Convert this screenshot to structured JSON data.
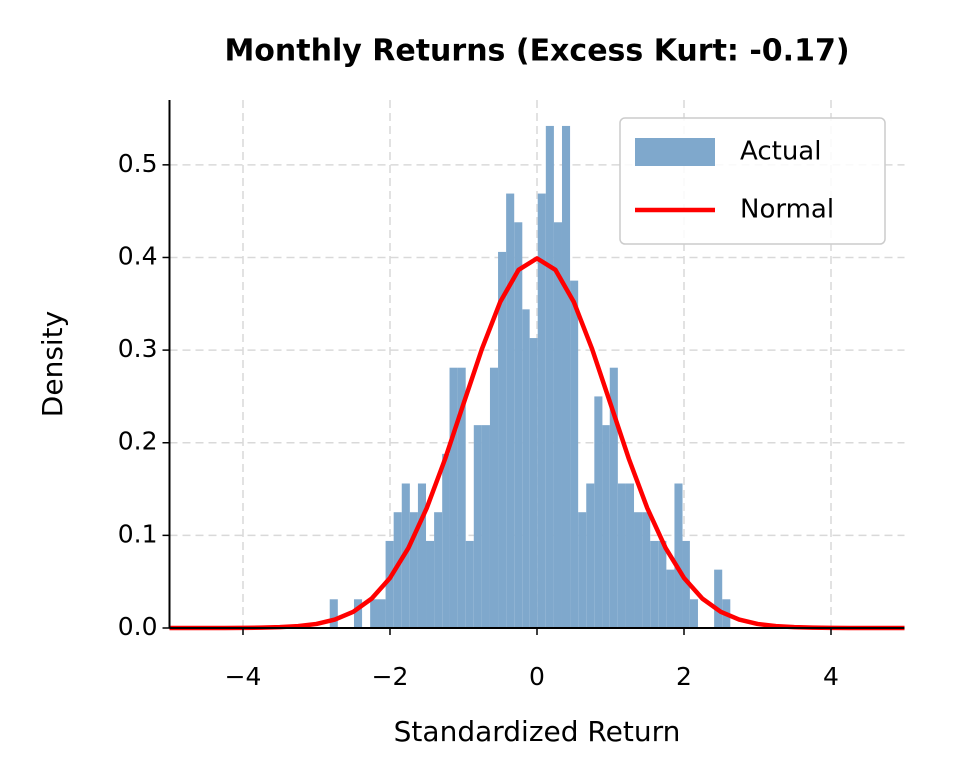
{
  "chart_data": {
    "type": "histogram",
    "title": "Monthly Returns (Excess Kurt: -0.17)",
    "x_label": "Standardized Return",
    "y_label": "Density",
    "bins": [
      -2.82,
      -2.71,
      -2.6,
      -2.49,
      -2.38,
      -2.27,
      -2.17,
      -2.06,
      -1.95,
      -1.84,
      -1.73,
      -1.62,
      -1.51,
      -1.4,
      -1.29,
      -1.19,
      -1.08,
      -0.97,
      -0.86,
      -0.75,
      -0.64,
      -0.53,
      -0.42,
      -0.31,
      -0.2,
      -0.1,
      0.01,
      0.12,
      0.23,
      0.34,
      0.45,
      0.56,
      0.67,
      0.78,
      0.89,
      0.99,
      1.1,
      1.21,
      1.32,
      1.43,
      1.54,
      1.65,
      1.76,
      1.87,
      1.98,
      2.08,
      2.19,
      2.3,
      2.41,
      2.52,
      2.63
    ],
    "series": [
      {
        "name": "Actual",
        "type": "histogram",
        "color": "#7fa8cc",
        "values": [
          0.031,
          0,
          0,
          0.031,
          0,
          0.031,
          0.031,
          0.094,
          0.125,
          0.156,
          0.125,
          0.156,
          0.094,
          0.125,
          0.188,
          0.281,
          0.281,
          0.094,
          0.219,
          0.219,
          0.281,
          0.406,
          0.469,
          0.438,
          0.344,
          0.313,
          0.469,
          0.542,
          0.438,
          0.542,
          0.375,
          0.125,
          0.156,
          0.25,
          0.219,
          0.281,
          0.156,
          0.156,
          0.125,
          0.125,
          0.094,
          0.094,
          0.063,
          0.156,
          0.094,
          0.031,
          0,
          0,
          0.063,
          0.031
        ]
      },
      {
        "name": "Normal",
        "type": "line",
        "color": "#ff0000",
        "x": [
          -5,
          -4.75,
          -4.5,
          -4.25,
          -4,
          -3.75,
          -3.5,
          -3.25,
          -3,
          -2.75,
          -2.5,
          -2.25,
          -2,
          -1.75,
          -1.5,
          -1.25,
          -1,
          -0.75,
          -0.5,
          -0.25,
          0,
          0.25,
          0.5,
          0.75,
          1,
          1.25,
          1.5,
          1.75,
          2,
          2.25,
          2.5,
          2.75,
          3,
          3.25,
          3.5,
          3.75,
          4,
          4.25,
          4.5,
          4.75,
          5
        ],
        "values": [
          0,
          0,
          0,
          0,
          0.0001,
          0.0004,
          0.0009,
          0.002,
          0.0044,
          0.0091,
          0.0175,
          0.0317,
          0.054,
          0.0863,
          0.1295,
          0.1826,
          0.242,
          0.3011,
          0.3521,
          0.3867,
          0.399,
          0.3867,
          0.3521,
          0.3011,
          0.242,
          0.1826,
          0.1295,
          0.0863,
          0.054,
          0.0317,
          0.0175,
          0.0091,
          0.0044,
          0.002,
          0.0009,
          0.0004,
          0.0001,
          0,
          0,
          0,
          0
        ]
      }
    ],
    "xlim": [
      -5,
      5
    ],
    "ylim": [
      0,
      0.57
    ],
    "xticks": [
      {
        "value": -4,
        "label": "−4"
      },
      {
        "value": -2,
        "label": "−2"
      },
      0,
      2,
      4
    ],
    "yticks": [
      {
        "value": 0,
        "label": "0.0"
      },
      {
        "value": 0.1,
        "label": "0.1"
      },
      {
        "value": 0.2,
        "label": "0.2"
      },
      {
        "value": 0.3,
        "label": "0.3"
      },
      {
        "value": 0.4,
        "label": "0.4"
      },
      {
        "value": 0.5,
        "label": "0.5"
      }
    ],
    "grid": true,
    "legend": "upper right"
  }
}
